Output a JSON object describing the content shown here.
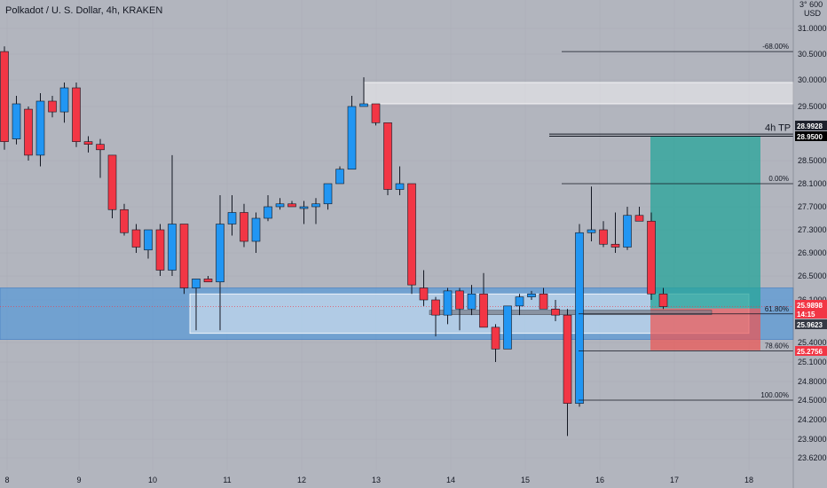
{
  "header": {
    "title": "Polkadot / U. S. Dollar, 4h, KRAKEN"
  },
  "axis": {
    "currency_top": "3° 600",
    "currency": "USD",
    "y_ticks": [
      "31.0000",
      "30.5000",
      "30.0000",
      "29.5000",
      "28.5000",
      "28.1000",
      "27.7000",
      "27.3000",
      "26.9000",
      "26.5000",
      "26.1000",
      "25.4000",
      "25.1000",
      "24.8000",
      "24.5000",
      "24.2000",
      "23.9000",
      "23.6200"
    ],
    "x_ticks": [
      "8",
      "9",
      "10",
      "11",
      "12",
      "13",
      "14",
      "15",
      "16",
      "17",
      "18"
    ]
  },
  "price_tags": [
    {
      "label": "28.9928",
      "bg": "#1e222d"
    },
    {
      "label": "28.9500",
      "bg": "#000000"
    },
    {
      "label": "25.9898",
      "bg": "#f23645"
    },
    {
      "label": "14:15",
      "bg": "#f23645"
    },
    {
      "label": "25.9623",
      "bg": "#363a45"
    },
    {
      "label": "25.2756",
      "bg": "#f23645"
    }
  ],
  "fib_levels": [
    {
      "label": "-68.00%"
    },
    {
      "label": "0.00%"
    },
    {
      "label": "61.80%"
    },
    {
      "label": "78.60%"
    },
    {
      "label": "100.00%"
    }
  ],
  "annotation": "4h TP",
  "colors": {
    "up": "#2196f3",
    "down": "#f23645",
    "zone_blue": "#5b9bd5",
    "tp_zone": "#26a69a",
    "sl_zone": "#ef5350",
    "background": "#b2b5be"
  },
  "chart_data": {
    "type": "candlestick",
    "symbol": "Polkadot / U. S. Dollar",
    "timeframe": "4h",
    "exchange": "KRAKEN",
    "x_labels": [
      "8",
      "9",
      "10",
      "11",
      "12",
      "13",
      "14",
      "15",
      "16",
      "17",
      "18"
    ],
    "ylim": [
      23.5,
      31.3
    ],
    "candles": [
      {
        "o": 30.55,
        "h": 30.65,
        "l": 28.7,
        "c": 28.85
      },
      {
        "o": 28.9,
        "h": 29.7,
        "l": 28.8,
        "c": 29.55
      },
      {
        "o": 29.45,
        "h": 29.5,
        "l": 28.5,
        "c": 28.6
      },
      {
        "o": 28.6,
        "h": 29.75,
        "l": 28.4,
        "c": 29.6
      },
      {
        "o": 29.6,
        "h": 29.7,
        "l": 29.3,
        "c": 29.4
      },
      {
        "o": 29.4,
        "h": 29.95,
        "l": 29.2,
        "c": 29.85
      },
      {
        "o": 29.85,
        "h": 29.95,
        "l": 28.75,
        "c": 28.85
      },
      {
        "o": 28.85,
        "h": 28.95,
        "l": 28.65,
        "c": 28.8
      },
      {
        "o": 28.8,
        "h": 28.9,
        "l": 28.2,
        "c": 28.7
      },
      {
        "o": 28.6,
        "h": 28.6,
        "l": 27.5,
        "c": 27.65
      },
      {
        "o": 27.65,
        "h": 27.75,
        "l": 27.2,
        "c": 27.25
      },
      {
        "o": 27.3,
        "h": 27.4,
        "l": 26.9,
        "c": 27.0
      },
      {
        "o": 26.95,
        "h": 27.3,
        "l": 26.8,
        "c": 27.3
      },
      {
        "o": 27.3,
        "h": 27.4,
        "l": 26.5,
        "c": 26.6
      },
      {
        "o": 26.6,
        "h": 28.6,
        "l": 26.5,
        "c": 27.4
      },
      {
        "o": 27.4,
        "h": 27.4,
        "l": 26.2,
        "c": 26.3
      },
      {
        "o": 26.3,
        "h": 26.45,
        "l": 25.6,
        "c": 26.45
      },
      {
        "o": 26.45,
        "h": 26.5,
        "l": 26.4,
        "c": 26.4
      },
      {
        "o": 26.4,
        "h": 27.9,
        "l": 25.6,
        "c": 27.4
      },
      {
        "o": 27.4,
        "h": 27.9,
        "l": 27.2,
        "c": 27.6
      },
      {
        "o": 27.6,
        "h": 27.75,
        "l": 27.0,
        "c": 27.1
      },
      {
        "o": 27.1,
        "h": 27.6,
        "l": 26.9,
        "c": 27.5
      },
      {
        "o": 27.5,
        "h": 27.9,
        "l": 27.45,
        "c": 27.7
      },
      {
        "o": 27.7,
        "h": 27.85,
        "l": 27.65,
        "c": 27.75
      },
      {
        "o": 27.75,
        "h": 27.8,
        "l": 27.7,
        "c": 27.7
      },
      {
        "o": 27.7,
        "h": 27.8,
        "l": 27.4,
        "c": 27.7
      },
      {
        "o": 27.7,
        "h": 27.85,
        "l": 27.4,
        "c": 27.75
      },
      {
        "o": 27.75,
        "h": 28.1,
        "l": 27.65,
        "c": 28.1
      },
      {
        "o": 28.1,
        "h": 28.4,
        "l": 28.1,
        "c": 28.35
      },
      {
        "o": 28.35,
        "h": 29.7,
        "l": 28.35,
        "c": 29.5
      },
      {
        "o": 29.5,
        "h": 30.05,
        "l": 29.5,
        "c": 29.55
      },
      {
        "o": 29.55,
        "h": 29.55,
        "l": 29.15,
        "c": 29.2
      },
      {
        "o": 29.2,
        "h": 29.2,
        "l": 27.9,
        "c": 28.0
      },
      {
        "o": 28.0,
        "h": 28.4,
        "l": 27.9,
        "c": 28.1
      },
      {
        "o": 28.1,
        "h": 28.1,
        "l": 26.2,
        "c": 26.35
      },
      {
        "o": 26.3,
        "h": 26.6,
        "l": 26.0,
        "c": 26.1
      },
      {
        "o": 26.1,
        "h": 26.15,
        "l": 25.5,
        "c": 25.85
      },
      {
        "o": 25.85,
        "h": 26.3,
        "l": 25.7,
        "c": 26.25
      },
      {
        "o": 26.25,
        "h": 26.3,
        "l": 25.6,
        "c": 25.95
      },
      {
        "o": 25.95,
        "h": 26.35,
        "l": 25.85,
        "c": 26.2
      },
      {
        "o": 26.2,
        "h": 26.55,
        "l": 25.7,
        "c": 25.65
      },
      {
        "o": 25.65,
        "h": 25.7,
        "l": 25.1,
        "c": 25.3
      },
      {
        "o": 25.3,
        "h": 26.0,
        "l": 25.3,
        "c": 26.0
      },
      {
        "o": 26.0,
        "h": 26.2,
        "l": 25.85,
        "c": 26.15
      },
      {
        "o": 26.15,
        "h": 26.25,
        "l": 26.1,
        "c": 26.2
      },
      {
        "o": 26.2,
        "h": 26.3,
        "l": 25.95,
        "c": 25.95
      },
      {
        "o": 25.95,
        "h": 26.1,
        "l": 25.75,
        "c": 25.85
      },
      {
        "o": 25.85,
        "h": 25.95,
        "l": 23.95,
        "c": 24.45
      },
      {
        "o": 24.45,
        "h": 27.4,
        "l": 24.4,
        "c": 27.25
      },
      {
        "o": 27.25,
        "h": 28.05,
        "l": 27.1,
        "c": 27.3
      },
      {
        "o": 27.3,
        "h": 27.45,
        "l": 27.0,
        "c": 27.05
      },
      {
        "o": 27.05,
        "h": 27.6,
        "l": 26.9,
        "c": 27.0
      },
      {
        "o": 27.0,
        "h": 27.7,
        "l": 26.95,
        "c": 27.55
      },
      {
        "o": 27.55,
        "h": 27.7,
        "l": 27.45,
        "c": 27.45
      },
      {
        "o": 27.45,
        "h": 27.6,
        "l": 26.1,
        "c": 26.2
      },
      {
        "o": 26.2,
        "h": 26.3,
        "l": 25.95,
        "c": 25.99
      }
    ],
    "fibonacci": [
      {
        "level": "-68.00%",
        "price": 30.55
      },
      {
        "level": "0.00%",
        "price": 28.1
      },
      {
        "level": "61.80%",
        "price": 25.87
      },
      {
        "level": "78.60%",
        "price": 25.27
      },
      {
        "level": "100.00%",
        "price": 24.5
      }
    ],
    "zones": [
      {
        "name": "demand zone",
        "top": 26.3,
        "bottom": 25.45
      },
      {
        "name": "supply zone",
        "top": 29.95,
        "bottom": 29.55
      }
    ],
    "position": {
      "entry": 25.96,
      "target": 28.95,
      "stop": 25.28
    },
    "current_price": 25.9898,
    "countdown": "14:15"
  }
}
